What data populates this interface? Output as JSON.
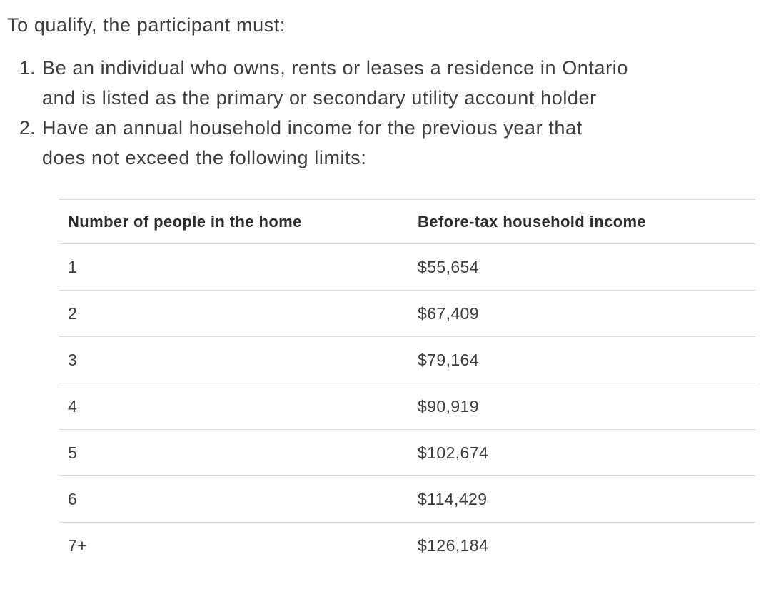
{
  "intro": {
    "text": "To qualify, the participant must:"
  },
  "requirements": [
    {
      "lines": [
        "Be an individual who owns, rents or leases a residence in Ontario",
        "and is listed as the primary or secondary utility account holder"
      ]
    },
    {
      "lines": [
        "Have an annual household income for the previous year that",
        "does not exceed the following limits:"
      ]
    }
  ],
  "table": {
    "headers": [
      "Number of people in the home",
      "Before-tax household income"
    ],
    "rows": [
      {
        "people": "1",
        "income": "$55,654"
      },
      {
        "people": "2",
        "income": "$67,409"
      },
      {
        "people": "3",
        "income": "$79,164"
      },
      {
        "people": "4",
        "income": "$90,919"
      },
      {
        "people": "5",
        "income": "$102,674"
      },
      {
        "people": "6",
        "income": "$114,429"
      },
      {
        "people": "7+",
        "income": "$126,184"
      }
    ]
  },
  "colors": {
    "text": "#3d3d3d",
    "heading": "#2d2d2d",
    "border": "#dcdcdc",
    "bg": "#ffffff"
  }
}
